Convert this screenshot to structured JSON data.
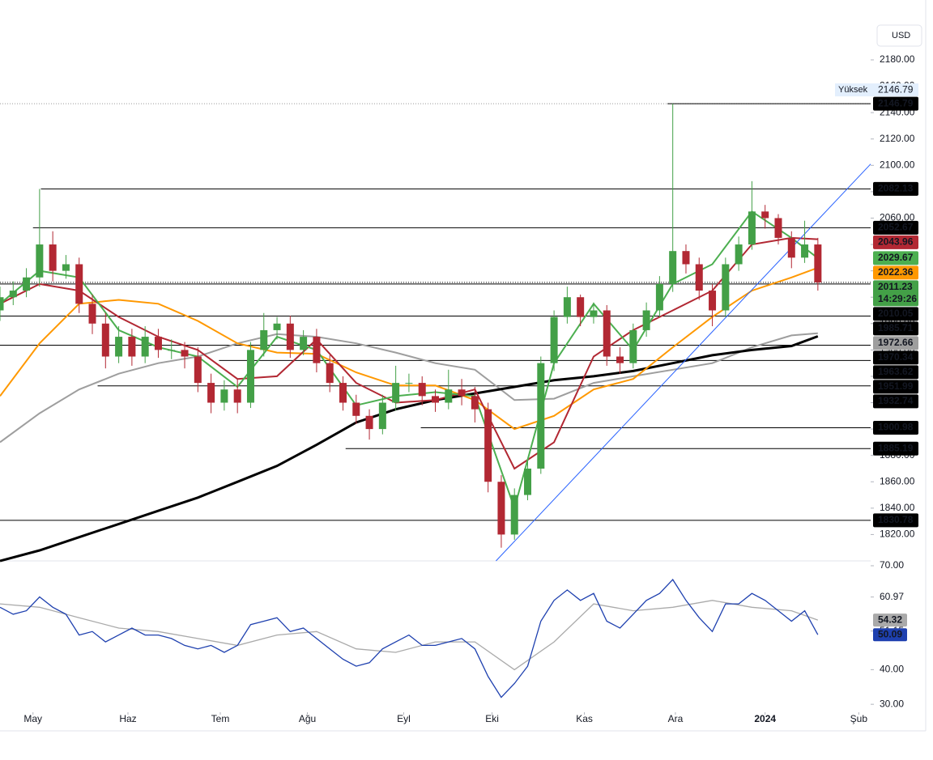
{
  "chart_data": [
    {
      "type": "candlestick",
      "currency": "USD",
      "xlim": [
        0,
        66
      ],
      "ylim": [
        1800,
        2207
      ],
      "xticks": [
        {
          "value": 2.5,
          "label": "May"
        },
        {
          "value": 9.7,
          "label": "Haz"
        },
        {
          "value": 16.7,
          "label": "Tem"
        },
        {
          "value": 23.3,
          "label": "Ağu"
        },
        {
          "value": 30.6,
          "label": "Eyl"
        },
        {
          "value": 37.3,
          "label": "Eki"
        },
        {
          "value": 44.3,
          "label": "Kas"
        },
        {
          "value": 51.2,
          "label": "Ara"
        },
        {
          "value": 58,
          "label": "2024"
        },
        {
          "value": 65.1,
          "label": "Şub"
        }
      ],
      "yticks": [
        {
          "value": 1820,
          "label": "1820.00"
        },
        {
          "value": 1840,
          "label": "1840.00"
        },
        {
          "value": 1860,
          "label": "1860.00"
        },
        {
          "value": 1880,
          "label": "1880.00"
        },
        {
          "value": 1900,
          "label": "1900.00"
        },
        {
          "value": 1920,
          "label": "1920.00"
        },
        {
          "value": 1940,
          "label": "1940.00"
        },
        {
          "value": 1960,
          "label": "1960.00"
        },
        {
          "value": 1980,
          "label": "1980.00"
        },
        {
          "value": 2000,
          "label": "2000.00"
        },
        {
          "value": 2020,
          "label": "2020.00"
        },
        {
          "value": 2040,
          "label": "2040.00"
        },
        {
          "value": 2060,
          "label": "2060.00"
        },
        {
          "value": 2080,
          "label": "2080.00"
        },
        {
          "value": 2100,
          "label": "2100.00"
        },
        {
          "value": 2120,
          "label": "2120.00"
        },
        {
          "value": 2140,
          "label": "2140.00"
        },
        {
          "value": 2160,
          "label": "2160.00"
        },
        {
          "value": 2180,
          "label": "2180.00"
        }
      ],
      "color_up": "#43a047",
      "color_down": "#b22833",
      "candles": {
        "x": [
          0,
          1,
          2,
          3,
          4,
          5,
          6,
          7,
          8,
          9,
          10,
          11,
          12,
          13,
          14,
          15,
          16,
          17,
          18,
          19,
          20,
          21,
          22,
          23,
          24,
          25,
          26,
          27,
          28,
          29,
          30,
          31,
          32,
          33,
          34,
          35,
          36,
          37,
          38,
          39,
          40,
          41,
          42,
          43,
          44,
          45,
          46,
          47,
          48,
          49,
          50,
          51,
          52,
          53,
          54,
          55,
          56,
          57,
          58,
          59,
          60,
          61,
          62
        ],
        "open": [
          1990,
          2000,
          2005,
          2015,
          2040,
          2020,
          2025,
          1995,
          1980,
          1955,
          1970,
          1955,
          1970,
          1960,
          1960,
          1955,
          1935,
          1920,
          1930,
          1920,
          1960,
          1975,
          1980,
          1960,
          1970,
          1950,
          1935,
          1920,
          1910,
          1900,
          1920,
          1935,
          1935,
          1925,
          1920,
          1930,
          1925,
          1915,
          1860,
          1820,
          1850,
          1870,
          1950,
          1985,
          2000,
          1985,
          1990,
          1955,
          1950,
          1975,
          1990,
          2010,
          2035,
          2025,
          2005,
          1990,
          2025,
          2040,
          2065,
          2060,
          2045,
          2030,
          2040
        ],
        "high": [
          2008,
          2012,
          2022,
          2082.13,
          2050,
          2032,
          2030,
          2002,
          1988,
          1978,
          1976,
          1978,
          1976,
          1968,
          1966,
          1962,
          1942,
          1937,
          1938,
          1966,
          1988,
          1985,
          1986,
          1975,
          1976,
          1956,
          1940,
          1926,
          1915,
          1926,
          1948,
          1942,
          1940,
          1930,
          1945,
          1938,
          1932,
          1920,
          1865,
          1855,
          1876,
          1955,
          1990,
          2008,
          2002,
          1996,
          1994,
          1962,
          1980,
          1996,
          2016,
          2146.79,
          2040,
          2030,
          2010,
          2030,
          2046,
          2088,
          2070,
          2063,
          2050,
          2058,
          2045
        ],
        "low": [
          1982,
          1994,
          2000,
          2008,
          2012,
          2014,
          1988,
          1972,
          1946,
          1950,
          1948,
          1950,
          1954,
          1953,
          1946,
          1928,
          1912,
          1914,
          1912,
          1916,
          1955,
          1968,
          1954,
          1956,
          1943,
          1928,
          1914,
          1904,
          1892,
          1896,
          1914,
          1928,
          1918,
          1913,
          1915,
          1918,
          1905,
          1852,
          1810,
          1816,
          1846,
          1866,
          1944,
          1980,
          1978,
          1980,
          1948,
          1942,
          1946,
          1970,
          1985,
          2004,
          2018,
          1998,
          1978,
          1985,
          2020,
          2036,
          2052,
          2040,
          2022,
          2026,
          2005
        ],
        "close": [
          2000,
          2005,
          2015,
          2040,
          2020,
          2025,
          1995,
          1980,
          1955,
          1970,
          1955,
          1970,
          1960,
          1960,
          1955,
          1935,
          1920,
          1930,
          1920,
          1960,
          1975,
          1980,
          1960,
          1970,
          1950,
          1935,
          1920,
          1910,
          1900,
          1920,
          1935,
          1935,
          1925,
          1920,
          1930,
          1925,
          1915,
          1860,
          1820,
          1850,
          1870,
          1950,
          1985,
          2000,
          1985,
          1990,
          1955,
          1950,
          1975,
          1990,
          2010,
          2035,
          2025,
          2005,
          1990,
          2025,
          2040,
          2065,
          2060,
          2045,
          2030,
          2040,
          2011.23
        ]
      },
      "moving_averages": [
        {
          "color": "#9e9e9e",
          "line_width": 2,
          "x": [
            0,
            3,
            6,
            9,
            12,
            15,
            18,
            21,
            24,
            27,
            30,
            33,
            36,
            39,
            42,
            45,
            48,
            51,
            54,
            57,
            60,
            62
          ],
          "values": [
            1890,
            1912,
            1930,
            1942,
            1950,
            1955,
            1965,
            1972,
            1970,
            1965,
            1958,
            1950,
            1945,
            1922,
            1923,
            1935,
            1940,
            1945,
            1950,
            1962,
            1971,
            1972.66
          ]
        },
        {
          "color": "#000000",
          "line_width": 3,
          "x": [
            0,
            3,
            6,
            9,
            12,
            15,
            18,
            21,
            24,
            27,
            30,
            33,
            36,
            39,
            42,
            45,
            48,
            51,
            54,
            57,
            60,
            62
          ],
          "values": [
            1800,
            1808,
            1818,
            1828,
            1838,
            1848,
            1860,
            1872,
            1888,
            1905,
            1915,
            1922,
            1927,
            1932,
            1937,
            1940,
            1944,
            1950,
            1956,
            1960,
            1963,
            1970.34
          ]
        },
        {
          "color": "#ff9800",
          "line_width": 2,
          "x": [
            0,
            3,
            6,
            9,
            12,
            15,
            18,
            21,
            24,
            27,
            30,
            33,
            36,
            39,
            42,
            45,
            48,
            51,
            54,
            57,
            60,
            62
          ],
          "values": [
            1925,
            1965,
            1995,
            1998,
            1995,
            1982,
            1965,
            1958,
            1957,
            1943,
            1933,
            1933,
            1922,
            1900,
            1910,
            1930,
            1938,
            1962,
            1985,
            2005,
            2015,
            2022.36
          ]
        },
        {
          "color": "#b22833",
          "line_width": 2,
          "x": [
            0,
            3,
            6,
            9,
            12,
            15,
            18,
            21,
            24,
            27,
            30,
            33,
            36,
            39,
            42,
            45,
            48,
            51,
            54,
            57,
            60,
            62
          ],
          "values": [
            1995,
            2010,
            2005,
            1985,
            1970,
            1960,
            1938,
            1940,
            1968,
            1935,
            1920,
            1922,
            1930,
            1870,
            1890,
            1955,
            1975,
            1990,
            2005,
            2040,
            2045,
            2043.96
          ]
        },
        {
          "color": "#4caf50",
          "line_width": 2,
          "x": [
            0,
            3,
            6,
            9,
            12,
            15,
            18,
            21,
            24,
            27,
            30,
            33,
            36,
            39,
            42,
            45,
            48,
            51,
            54,
            57,
            60,
            62
          ],
          "values": [
            1995,
            2020,
            2015,
            1975,
            1962,
            1955,
            1932,
            1970,
            1960,
            1918,
            1925,
            1928,
            1925,
            1840,
            1950,
            1995,
            1960,
            2010,
            2025,
            2065,
            2045,
            2029.67
          ]
        }
      ],
      "levels": {
        "values": [
          2146.79,
          2082.13,
          2052.67,
          2010.05,
          1985.71,
          1963.62,
          1951.99,
          1932.74,
          1900.98,
          1885.19,
          1830.78
        ],
        "x_start": [
          50.6,
          3.1,
          2.5,
          0,
          0,
          0,
          16.6,
          7.4,
          31.9,
          26.2,
          0
        ],
        "color": "#000000"
      },
      "trendline": {
        "x": [
          37.6,
          66
        ],
        "values": [
          1800,
          2101
        ],
        "color": "#2962ff"
      },
      "current_price": {
        "value": 2011.23,
        "countdown": "14:29:26",
        "color": "#43a047"
      },
      "high": {
        "label": "Yüksek",
        "value": 2146.79
      }
    },
    {
      "type": "line",
      "ylim": [
        27.7,
        71.4
      ],
      "xlim": [
        0,
        66
      ],
      "yticks": [
        {
          "value": 70,
          "label": "70.00"
        },
        {
          "value": 60.97,
          "label": "60.97"
        },
        {
          "value": 51.15,
          "label": "51.15"
        },
        {
          "value": 40,
          "label": "40.00"
        },
        {
          "value": 30,
          "label": "30.00"
        }
      ],
      "series": [
        {
          "color": "#aaaaaa",
          "x": [
            0,
            3,
            6,
            9,
            12,
            15,
            18,
            21,
            24,
            27,
            30,
            33,
            36,
            39,
            42,
            45,
            48,
            51,
            54,
            57,
            60,
            62
          ],
          "values": [
            59,
            58,
            55,
            52,
            51,
            49,
            47,
            50,
            51,
            46,
            45,
            48,
            48,
            40,
            48,
            59,
            57,
            58,
            60,
            58,
            57,
            54.32
          ]
        },
        {
          "color": "#1e40af",
          "x": [
            0,
            1,
            2,
            3,
            4,
            5,
            6,
            7,
            8,
            9,
            10,
            11,
            12,
            13,
            14,
            15,
            16,
            17,
            18,
            19,
            20,
            21,
            22,
            23,
            24,
            25,
            26,
            27,
            28,
            29,
            30,
            31,
            32,
            33,
            34,
            35,
            36,
            37,
            38,
            39,
            40,
            41,
            42,
            43,
            44,
            45,
            46,
            47,
            48,
            49,
            50,
            51,
            52,
            53,
            54,
            55,
            56,
            57,
            58,
            59,
            60,
            61,
            62
          ],
          "values": [
            58,
            56,
            57,
            61,
            58,
            56,
            50,
            51,
            48,
            50,
            52,
            50,
            50,
            49,
            47,
            46,
            47,
            45,
            47,
            53,
            54,
            55,
            51,
            52,
            49,
            46,
            43,
            41,
            42,
            46,
            48,
            50,
            47,
            47,
            48,
            49,
            46,
            38,
            32,
            36,
            41,
            54,
            60,
            63,
            60,
            62,
            54,
            52,
            56,
            60,
            62,
            66,
            60,
            55,
            51,
            59,
            59,
            62,
            60,
            57,
            54,
            57,
            50.09
          ]
        }
      ]
    }
  ]
}
